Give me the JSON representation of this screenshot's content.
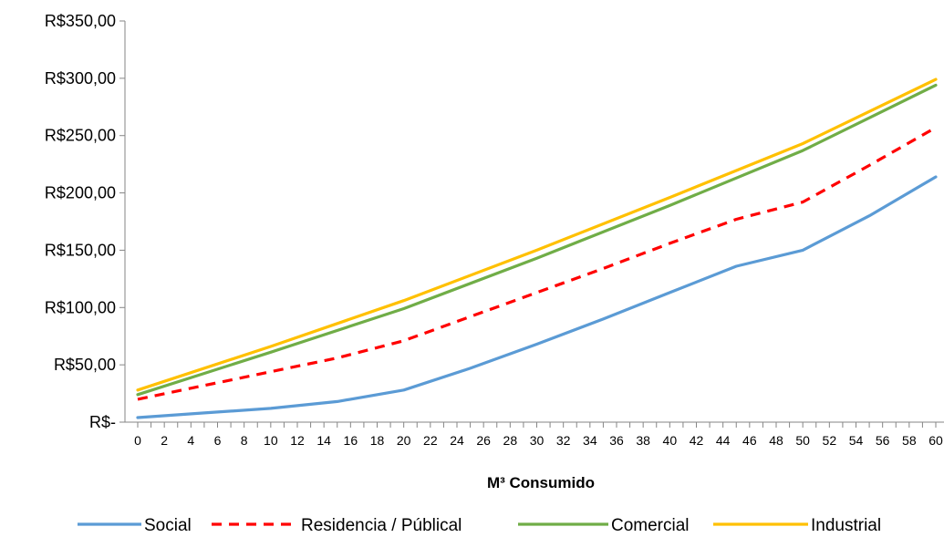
{
  "chart_data": {
    "type": "line",
    "title": "",
    "xlabel": "M³ Consumido",
    "ylabel": "",
    "ylim": [
      0,
      350
    ],
    "yticks": [
      {
        "value": 0,
        "label": "R$-"
      },
      {
        "value": 50,
        "label": "R$50,00"
      },
      {
        "value": 100,
        "label": "R$100,00"
      },
      {
        "value": 150,
        "label": "R$150,00"
      },
      {
        "value": 200,
        "label": "R$200,00"
      },
      {
        "value": 250,
        "label": "R$250,00"
      },
      {
        "value": 300,
        "label": "R$300,00"
      },
      {
        "value": 350,
        "label": "R$350,00"
      }
    ],
    "x_tick_labels": [
      "0",
      "2",
      "4",
      "6",
      "8",
      "10",
      "12",
      "14",
      "16",
      "18",
      "20",
      "22",
      "24",
      "26",
      "28",
      "30",
      "32",
      "34",
      "36",
      "38",
      "40",
      "42",
      "44",
      "46",
      "48",
      "50",
      "52",
      "54",
      "56",
      "58",
      "60"
    ],
    "grid": false,
    "legend_position": "bottom",
    "series": [
      {
        "name": "Social",
        "color": "#5B9BD5",
        "dash": "solid",
        "points": [
          [
            0,
            4
          ],
          [
            5,
            8
          ],
          [
            10,
            12
          ],
          [
            15,
            18
          ],
          [
            20,
            28
          ],
          [
            25,
            47
          ],
          [
            30,
            68
          ],
          [
            35,
            90
          ],
          [
            40,
            113
          ],
          [
            45,
            136
          ],
          [
            50,
            150
          ],
          [
            55,
            180
          ],
          [
            60,
            214
          ]
        ]
      },
      {
        "name": "Residencia / Públical",
        "color": "#FF0000",
        "dash": "dashed",
        "points": [
          [
            0,
            20
          ],
          [
            5,
            32
          ],
          [
            10,
            44
          ],
          [
            15,
            56
          ],
          [
            20,
            71
          ],
          [
            25,
            92
          ],
          [
            30,
            113
          ],
          [
            35,
            134
          ],
          [
            40,
            156
          ],
          [
            45,
            177
          ],
          [
            50,
            192
          ],
          [
            55,
            224
          ],
          [
            60,
            257
          ]
        ]
      },
      {
        "name": "Comercial",
        "color": "#70AD47",
        "dash": "solid",
        "points": [
          [
            0,
            24
          ],
          [
            10,
            61
          ],
          [
            20,
            99
          ],
          [
            30,
            143
          ],
          [
            40,
            189
          ],
          [
            50,
            237
          ],
          [
            60,
            294
          ]
        ]
      },
      {
        "name": "Industrial",
        "color": "#FFC000",
        "dash": "solid",
        "points": [
          [
            0,
            28
          ],
          [
            10,
            66
          ],
          [
            20,
            106
          ],
          [
            30,
            150
          ],
          [
            40,
            196
          ],
          [
            50,
            243
          ],
          [
            60,
            299
          ]
        ]
      }
    ]
  }
}
